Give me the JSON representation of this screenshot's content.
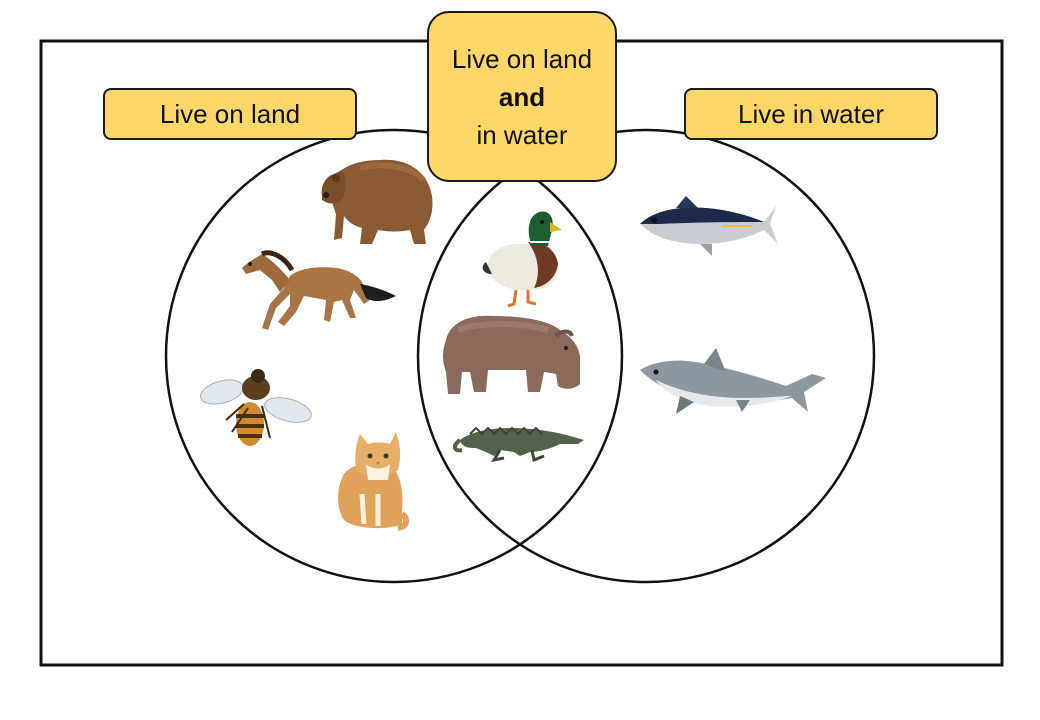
{
  "labels": {
    "land": "Live on land",
    "water": "Live in water",
    "both_line1": "Live on land",
    "both_line2": "and",
    "both_line3": "in water"
  },
  "colors": {
    "label_fill": "#FDD869",
    "outline": "#1a1a1a"
  },
  "regions": {
    "land_only": [
      "brown bear",
      "horse",
      "bee",
      "cat"
    ],
    "both": [
      "duck",
      "hippopotamus",
      "crocodile"
    ],
    "water_only": [
      "tuna",
      "shark"
    ]
  }
}
